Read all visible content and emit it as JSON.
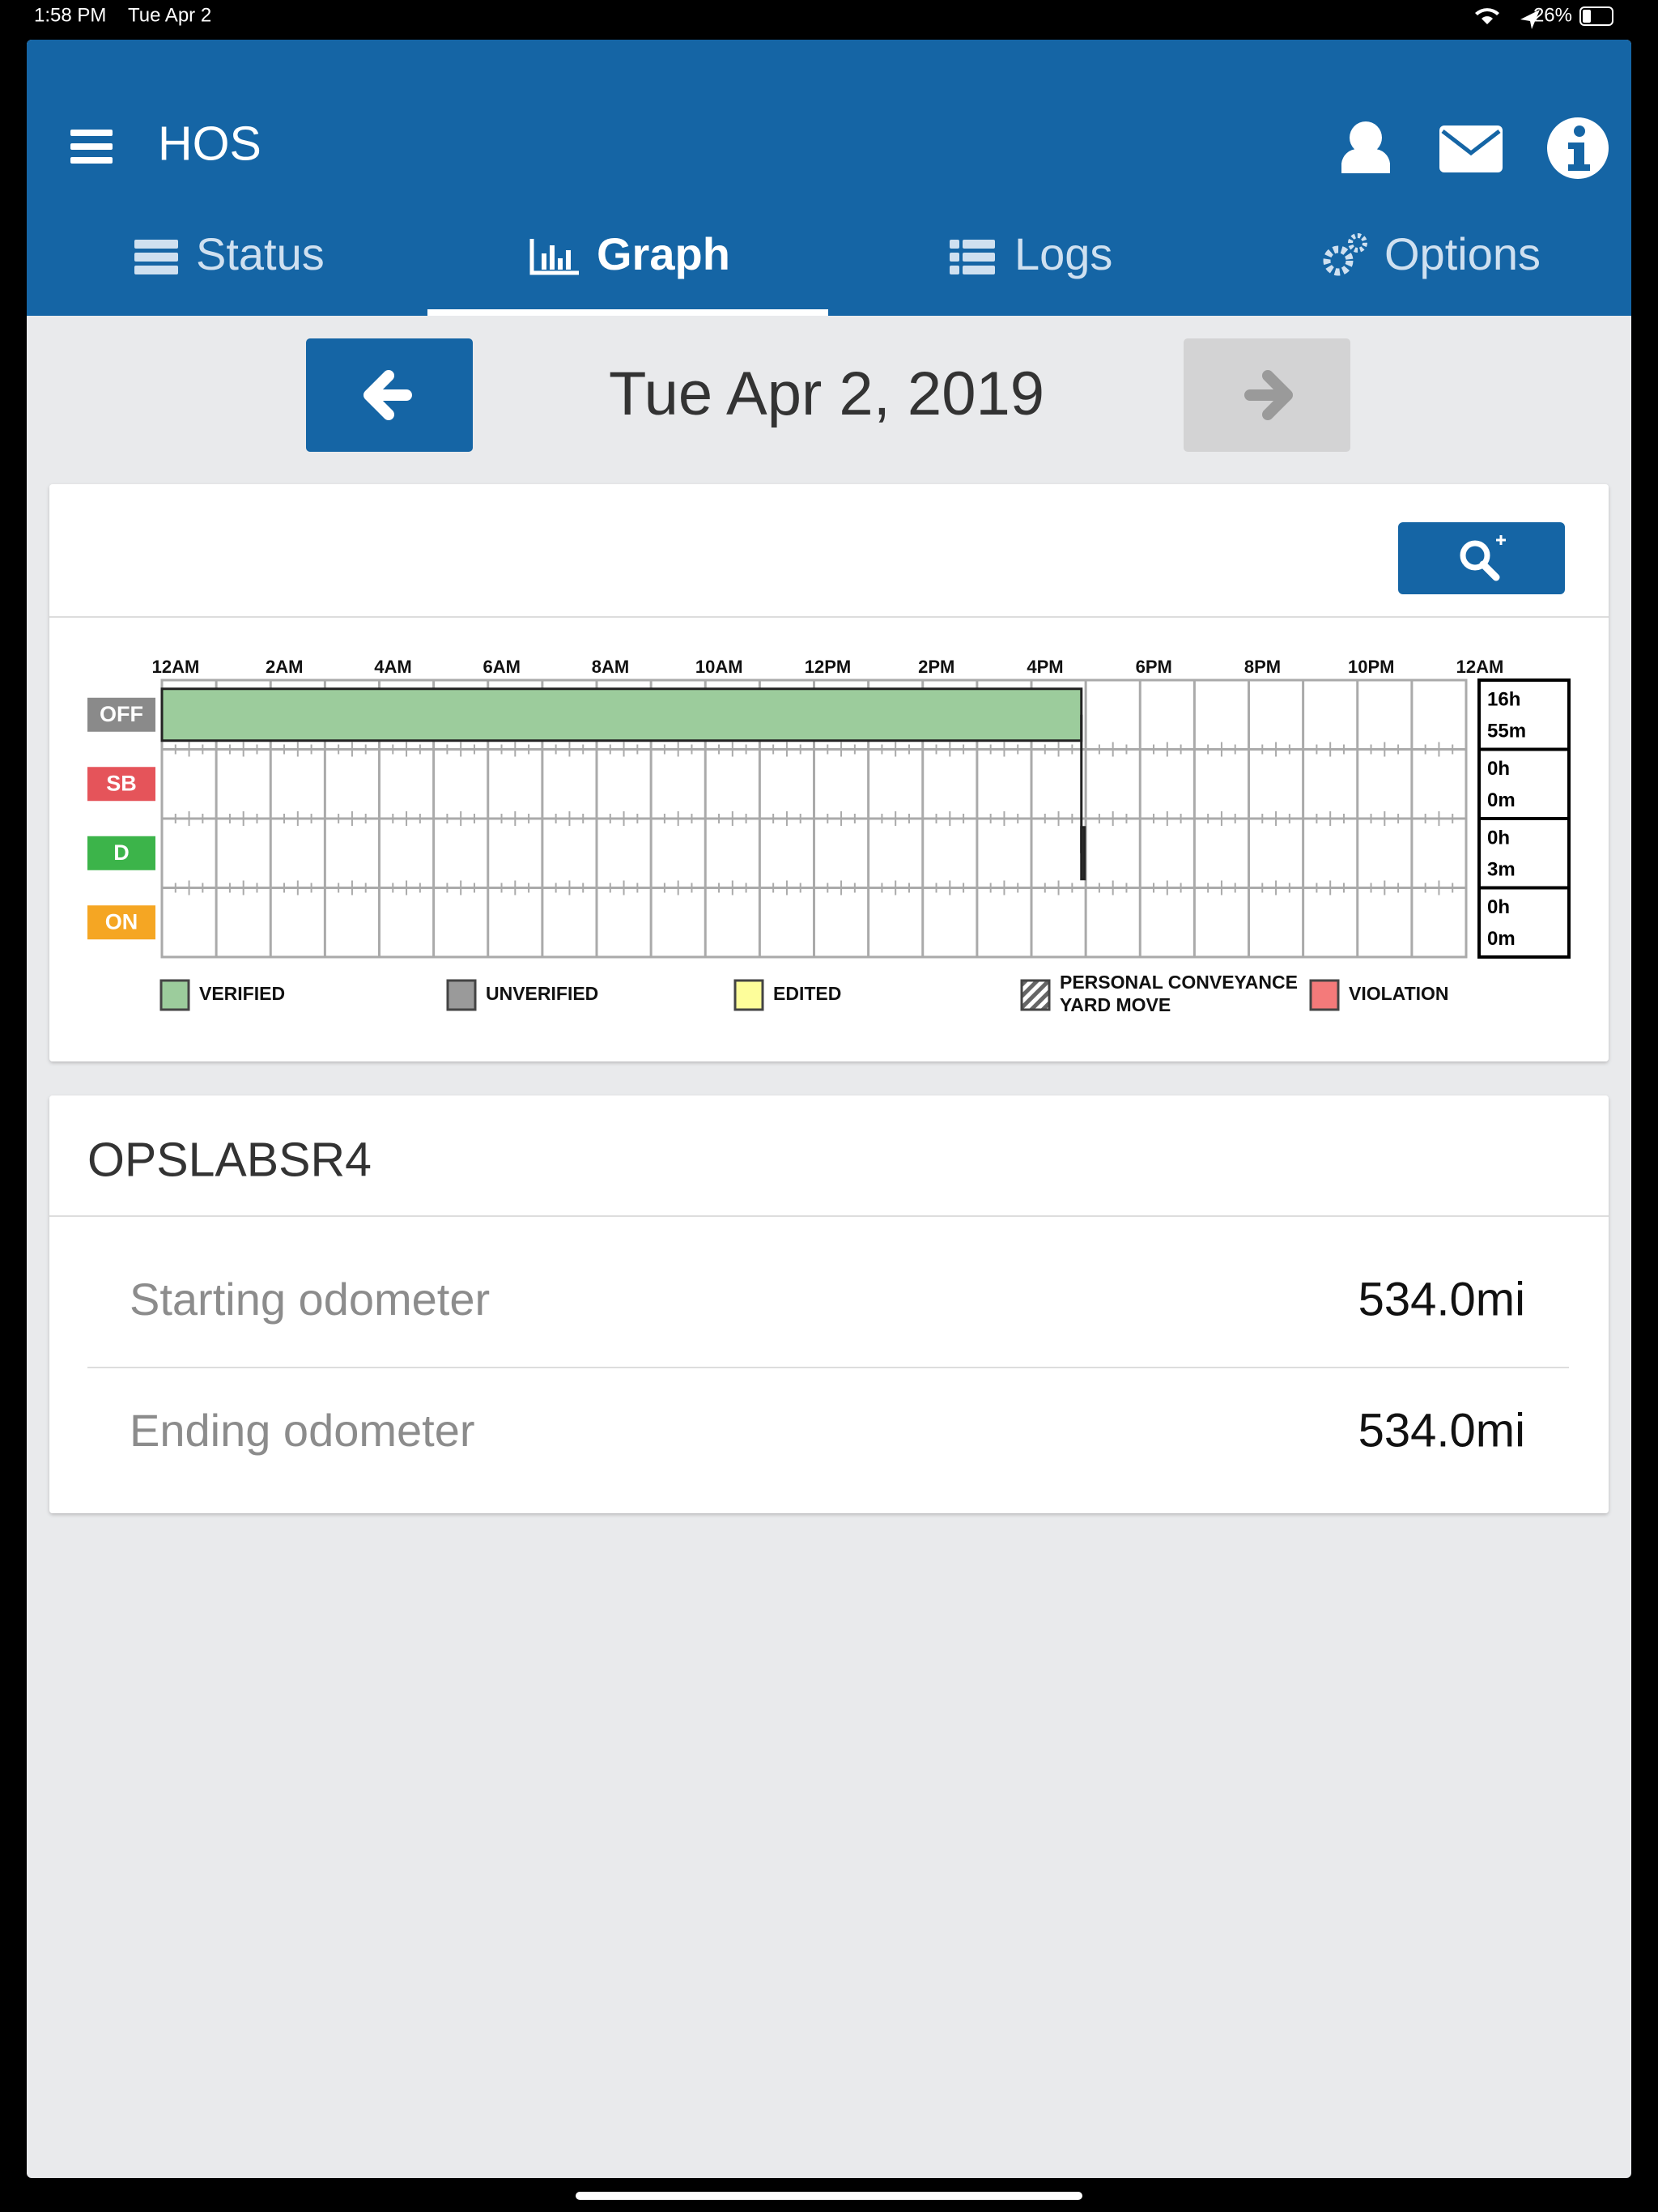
{
  "status_bar": {
    "time": "1:58 PM",
    "date": "Tue Apr 2",
    "battery": "26%"
  },
  "header": {
    "title": "HOS"
  },
  "tabs": [
    "Status",
    "Graph",
    "Logs",
    "Options"
  ],
  "active_tab": 1,
  "date_nav": {
    "date": "Tue Apr 2, 2019"
  },
  "graph": {
    "xlim": [
      0,
      24
    ],
    "hour_labels": [
      "12AM",
      "2AM",
      "4AM",
      "6AM",
      "8AM",
      "10AM",
      "12PM",
      "2PM",
      "4PM",
      "6PM",
      "8PM",
      "10PM",
      "12AM"
    ],
    "statuses": [
      {
        "label": "OFF",
        "color": "#8a8a8a",
        "total": [
          "16h",
          "55m"
        ]
      },
      {
        "label": "SB",
        "color": "#e5545a",
        "total": [
          "0h",
          "0m"
        ]
      },
      {
        "label": "D",
        "color": "#3cb44a",
        "total": [
          "0h",
          "3m"
        ]
      },
      {
        "label": "ON",
        "color": "#f5a623",
        "total": [
          "0h",
          "0m"
        ]
      }
    ],
    "segments": [
      {
        "status": 0,
        "start": 0,
        "end": 16.92,
        "color": "#9ccc9c"
      },
      {
        "status": 2,
        "start": 16.92,
        "end": 16.97,
        "color": "#333333"
      }
    ],
    "legend": [
      {
        "lines": [
          "VERIFIED"
        ],
        "color": "#9ccc9c"
      },
      {
        "lines": [
          "UNVERIFIED"
        ],
        "color": "#9a9a9a"
      },
      {
        "lines": [
          "EDITED"
        ],
        "color": "#fdfd9a"
      },
      {
        "lines": [
          "PERSONAL CONVEYANCE",
          "YARD MOVE"
        ],
        "color": "hatch"
      },
      {
        "lines": [
          "VIOLATION"
        ],
        "color": "#f47a7a"
      }
    ]
  },
  "vehicle": {
    "name": "OPSLABSR4",
    "rows": [
      {
        "label": "Starting odometer",
        "value": "534.0mi"
      },
      {
        "label": "Ending odometer",
        "value": "534.0mi"
      }
    ]
  }
}
